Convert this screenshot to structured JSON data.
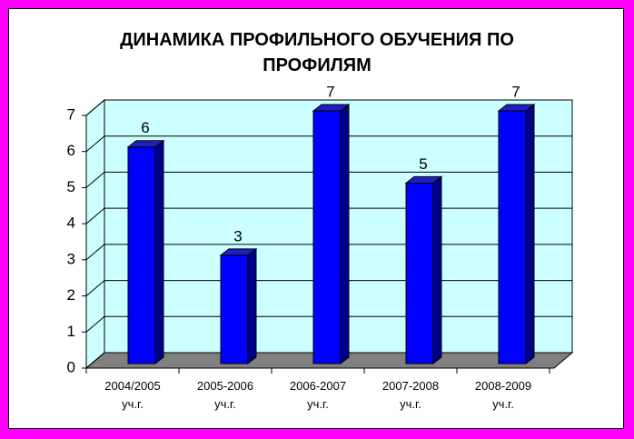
{
  "chart_data": {
    "type": "bar3d",
    "title": "ДИНАМИКА ПРОФИЛЬНОГО ОБУЧЕНИЯ ПО ПРОФИЛЯМ",
    "categories": [
      "2004/2005 уч.г.",
      "2005-2006 уч.г.",
      "2006-2007 уч.г.",
      "2007-2008 уч.г.",
      "2008-2009 уч.г."
    ],
    "values": [
      6,
      3,
      7,
      5,
      7
    ],
    "color": "#0000ff",
    "ylim": [
      0,
      7
    ],
    "yticks": [
      0,
      1,
      2,
      3,
      4,
      5,
      6,
      7
    ],
    "grid": true
  }
}
